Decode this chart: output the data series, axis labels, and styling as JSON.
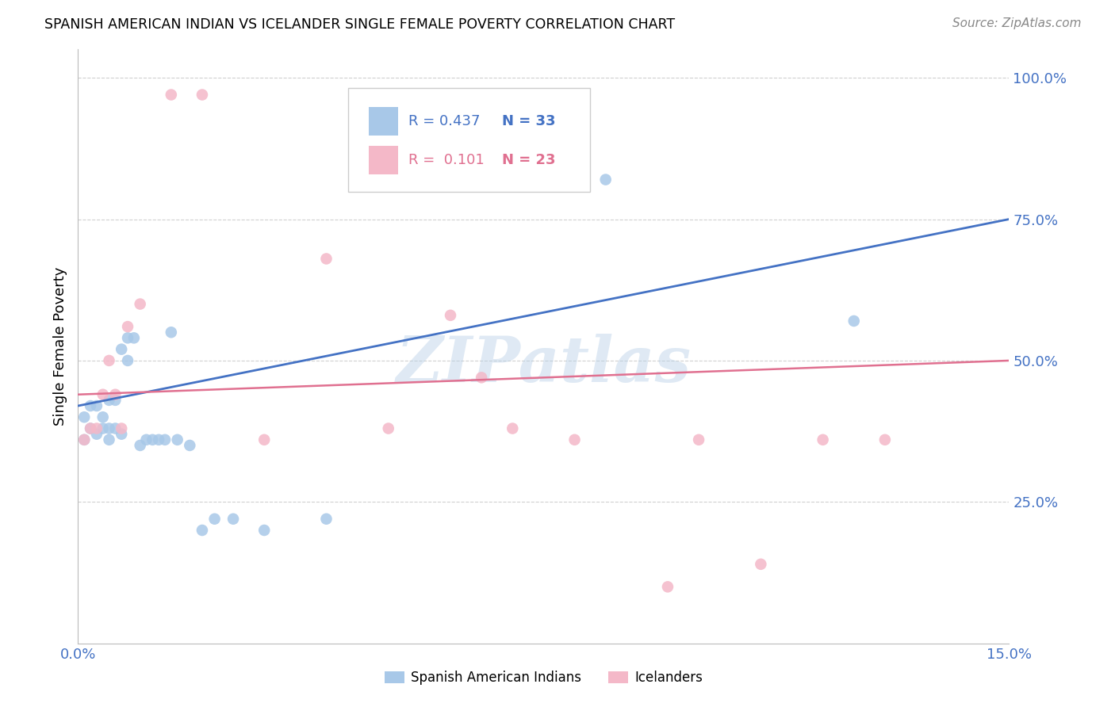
{
  "title": "SPANISH AMERICAN INDIAN VS ICELANDER SINGLE FEMALE POVERTY CORRELATION CHART",
  "source": "Source: ZipAtlas.com",
  "ylabel": "Single Female Poverty",
  "xlim": [
    0.0,
    0.15
  ],
  "ylim": [
    0.0,
    1.05
  ],
  "yticks": [
    0.25,
    0.5,
    0.75,
    1.0
  ],
  "ytick_labels": [
    "25.0%",
    "50.0%",
    "75.0%",
    "100.0%"
  ],
  "xticks": [
    0.0,
    0.03,
    0.06,
    0.09,
    0.12,
    0.15
  ],
  "xtick_labels": [
    "0.0%",
    "",
    "",
    "",
    "",
    "15.0%"
  ],
  "watermark": "ZIPatlas",
  "legend_blue_r": "R = 0.437",
  "legend_blue_n": "N = 33",
  "legend_pink_r": "R =  0.101",
  "legend_pink_n": "N = 23",
  "blue_color": "#a8c8e8",
  "blue_line_color": "#4472c4",
  "pink_color": "#f4b8c8",
  "pink_line_color": "#e07090",
  "blue_scatter_x": [
    0.001,
    0.001,
    0.002,
    0.002,
    0.003,
    0.003,
    0.004,
    0.004,
    0.005,
    0.005,
    0.005,
    0.006,
    0.006,
    0.007,
    0.007,
    0.008,
    0.008,
    0.009,
    0.01,
    0.011,
    0.012,
    0.013,
    0.014,
    0.015,
    0.016,
    0.018,
    0.02,
    0.022,
    0.025,
    0.03,
    0.04,
    0.085,
    0.125
  ],
  "blue_scatter_y": [
    0.36,
    0.4,
    0.38,
    0.42,
    0.37,
    0.42,
    0.38,
    0.4,
    0.36,
    0.38,
    0.43,
    0.38,
    0.43,
    0.37,
    0.52,
    0.5,
    0.54,
    0.54,
    0.35,
    0.36,
    0.36,
    0.36,
    0.36,
    0.55,
    0.36,
    0.35,
    0.2,
    0.22,
    0.22,
    0.2,
    0.22,
    0.82,
    0.57
  ],
  "pink_scatter_x": [
    0.001,
    0.002,
    0.003,
    0.004,
    0.005,
    0.006,
    0.007,
    0.008,
    0.01,
    0.015,
    0.02,
    0.03,
    0.04,
    0.05,
    0.06,
    0.065,
    0.07,
    0.08,
    0.095,
    0.1,
    0.11,
    0.12,
    0.13
  ],
  "pink_scatter_y": [
    0.36,
    0.38,
    0.38,
    0.44,
    0.5,
    0.44,
    0.38,
    0.56,
    0.6,
    0.97,
    0.97,
    0.36,
    0.68,
    0.38,
    0.58,
    0.47,
    0.38,
    0.36,
    0.1,
    0.36,
    0.14,
    0.36,
    0.36
  ],
  "background_color": "#ffffff",
  "grid_color": "#d0d0d0"
}
